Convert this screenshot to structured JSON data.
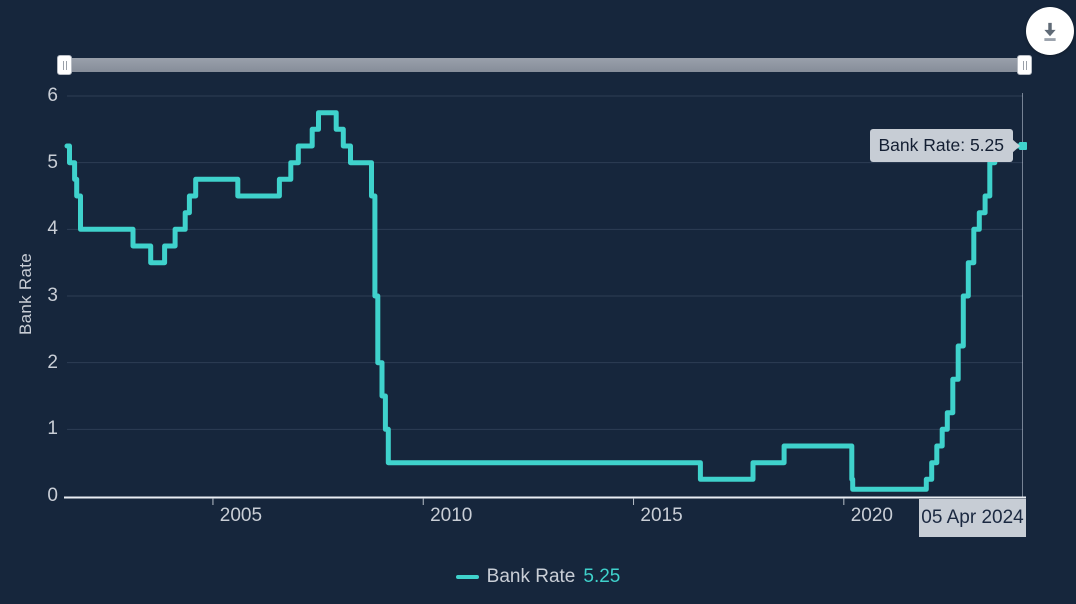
{
  "colors": {
    "background": "#16263C",
    "line": "#3FD2CC",
    "grid": "#2E3D54",
    "axis": "#E9EDF3",
    "text_muted": "#C9CED6",
    "tooltip_bg": "#C7CDD5",
    "tooltip_text": "#141F33",
    "slider_track": "#8A919E"
  },
  "icons": {
    "download": "download-icon",
    "slider_grip": "grip-icon"
  },
  "tooltip": {
    "text": "Bank Rate: 5.25"
  },
  "date_label": "05 Apr 2024",
  "legend": {
    "label": "Bank Rate",
    "value": "5.25"
  },
  "chart_data": {
    "type": "line",
    "step": "after",
    "title": "",
    "xlabel": "",
    "ylabel": "Bank Rate",
    "xlim": [
      2001.53,
      2024.26
    ],
    "ylim": [
      0,
      6
    ],
    "y_ticks": [
      0,
      1,
      2,
      3,
      4,
      5,
      6
    ],
    "x_ticks": [
      2005,
      2010,
      2015,
      2020
    ],
    "x_tick_labels": [
      "2005",
      "2010",
      "2015",
      "2020"
    ],
    "grid": true,
    "legend_position": "bottom",
    "hovered_point": {
      "date": "05 Apr 2024",
      "value": 5.25
    },
    "series": [
      {
        "name": "Bank Rate",
        "color": "#3FD2CC",
        "points": [
          [
            2001.53,
            5.25
          ],
          [
            2001.59,
            5.0
          ],
          [
            2001.71,
            4.75
          ],
          [
            2001.76,
            4.5
          ],
          [
            2001.85,
            4.0
          ],
          [
            2003.1,
            3.75
          ],
          [
            2003.52,
            3.5
          ],
          [
            2003.85,
            3.75
          ],
          [
            2004.1,
            4.0
          ],
          [
            2004.34,
            4.25
          ],
          [
            2004.44,
            4.5
          ],
          [
            2004.59,
            4.75
          ],
          [
            2005.59,
            4.5
          ],
          [
            2006.58,
            4.75
          ],
          [
            2006.85,
            5.0
          ],
          [
            2007.03,
            5.25
          ],
          [
            2007.36,
            5.5
          ],
          [
            2007.51,
            5.75
          ],
          [
            2007.93,
            5.5
          ],
          [
            2008.1,
            5.25
          ],
          [
            2008.27,
            5.0
          ],
          [
            2008.77,
            4.5
          ],
          [
            2008.85,
            3.0
          ],
          [
            2008.92,
            2.0
          ],
          [
            2009.02,
            1.5
          ],
          [
            2009.1,
            1.0
          ],
          [
            2009.17,
            0.5
          ],
          [
            2016.59,
            0.25
          ],
          [
            2017.84,
            0.5
          ],
          [
            2018.58,
            0.75
          ],
          [
            2020.19,
            0.25
          ],
          [
            2020.21,
            0.1
          ],
          [
            2021.96,
            0.25
          ],
          [
            2022.09,
            0.5
          ],
          [
            2022.21,
            0.75
          ],
          [
            2022.34,
            1.0
          ],
          [
            2022.46,
            1.25
          ],
          [
            2022.59,
            1.75
          ],
          [
            2022.72,
            2.25
          ],
          [
            2022.84,
            3.0
          ],
          [
            2022.96,
            3.5
          ],
          [
            2023.09,
            4.0
          ],
          [
            2023.22,
            4.25
          ],
          [
            2023.36,
            4.5
          ],
          [
            2023.47,
            5.0
          ],
          [
            2023.59,
            5.25
          ],
          [
            2024.26,
            5.25
          ]
        ]
      }
    ]
  }
}
